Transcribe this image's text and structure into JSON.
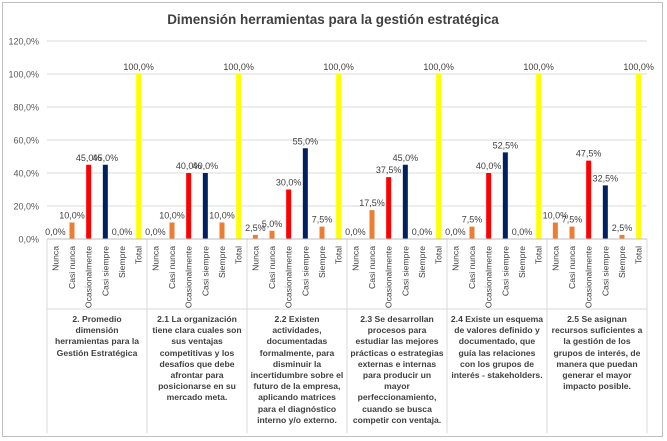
{
  "chart_data": {
    "type": "bar",
    "title": "Dimensión herramientas para la gestión estratégica",
    "ylim": [
      0,
      120
    ],
    "yticks": [
      "0,0%",
      "20,0%",
      "40,0%",
      "60,0%",
      "80,0%",
      "100,0%",
      "120,0%"
    ],
    "grid": true,
    "legend": "none",
    "categories": [
      "Nunca",
      "Casi nunca",
      "Ocasionalmente",
      "Casi siempre",
      "Siempre",
      "Total"
    ],
    "colors": [
      "#ed7d31",
      "#ed7d31",
      "#ff0000",
      "#002060",
      "#ed7d31",
      "#ffff00"
    ],
    "groups": [
      {
        "label": "2. Promedio dimensión herramientas para la Gestión Estratégica",
        "values": [
          0,
          10,
          45,
          45,
          0,
          100
        ],
        "labels": [
          "0,0%",
          "10,0%",
          "45,0%",
          "45,0%",
          "0,0%",
          "100,0%"
        ]
      },
      {
        "label": "2.1 La organización tiene clara cuales son sus ventajas competitivas y los desafíos que debe afrontar para posicionarse en su mercado meta.",
        "values": [
          0,
          10,
          40,
          40,
          10,
          100
        ],
        "labels": [
          "0,0%",
          "10,0%",
          "40,0%",
          "40,0%",
          "10,0%",
          "100,0%"
        ]
      },
      {
        "label": "2.2 Existen actividades, documentadas formalmente, para disminuir la incertidumbre sobre el futuro de la empresa, aplicando matrices para el diagnóstico interno y/o externo.",
        "values": [
          2.5,
          5,
          30,
          55,
          7.5,
          100
        ],
        "labels": [
          "2,5%",
          "5,0%",
          "30,0%",
          "55,0%",
          "7,5%",
          "100,0%"
        ]
      },
      {
        "label": "2.3 Se desarrollan procesos para estudiar las mejores prácticas o estrategias externas e internas para producir un mayor perfeccionamiento, cuando se busca competir con ventaja.",
        "values": [
          0,
          17.5,
          37.5,
          45,
          0,
          100
        ],
        "labels": [
          "0,0%",
          "17,5%",
          "37,5%",
          "45,0%",
          "0,0%",
          "100,0%"
        ]
      },
      {
        "label": "2.4 Existe un esquema de valores definido y documentado, que guía las relaciones con los grupos de interés - stakeholders.",
        "values": [
          0,
          7.5,
          40,
          52.5,
          0,
          100
        ],
        "labels": [
          "0,0%",
          "7,5%",
          "40,0%",
          "52,5%",
          "0,0%",
          "100,0%"
        ]
      },
      {
        "label": "2.5 Se asignan recursos suficientes a la gestión de los grupos de interés, de manera que puedan generar el mayor impacto posible.",
        "values": [
          10,
          7.5,
          47.5,
          32.5,
          2.5,
          100
        ],
        "labels": [
          "10,0%",
          "7,5%",
          "47,5%",
          "32,5%",
          "2,5%",
          "100,0%"
        ]
      }
    ]
  }
}
